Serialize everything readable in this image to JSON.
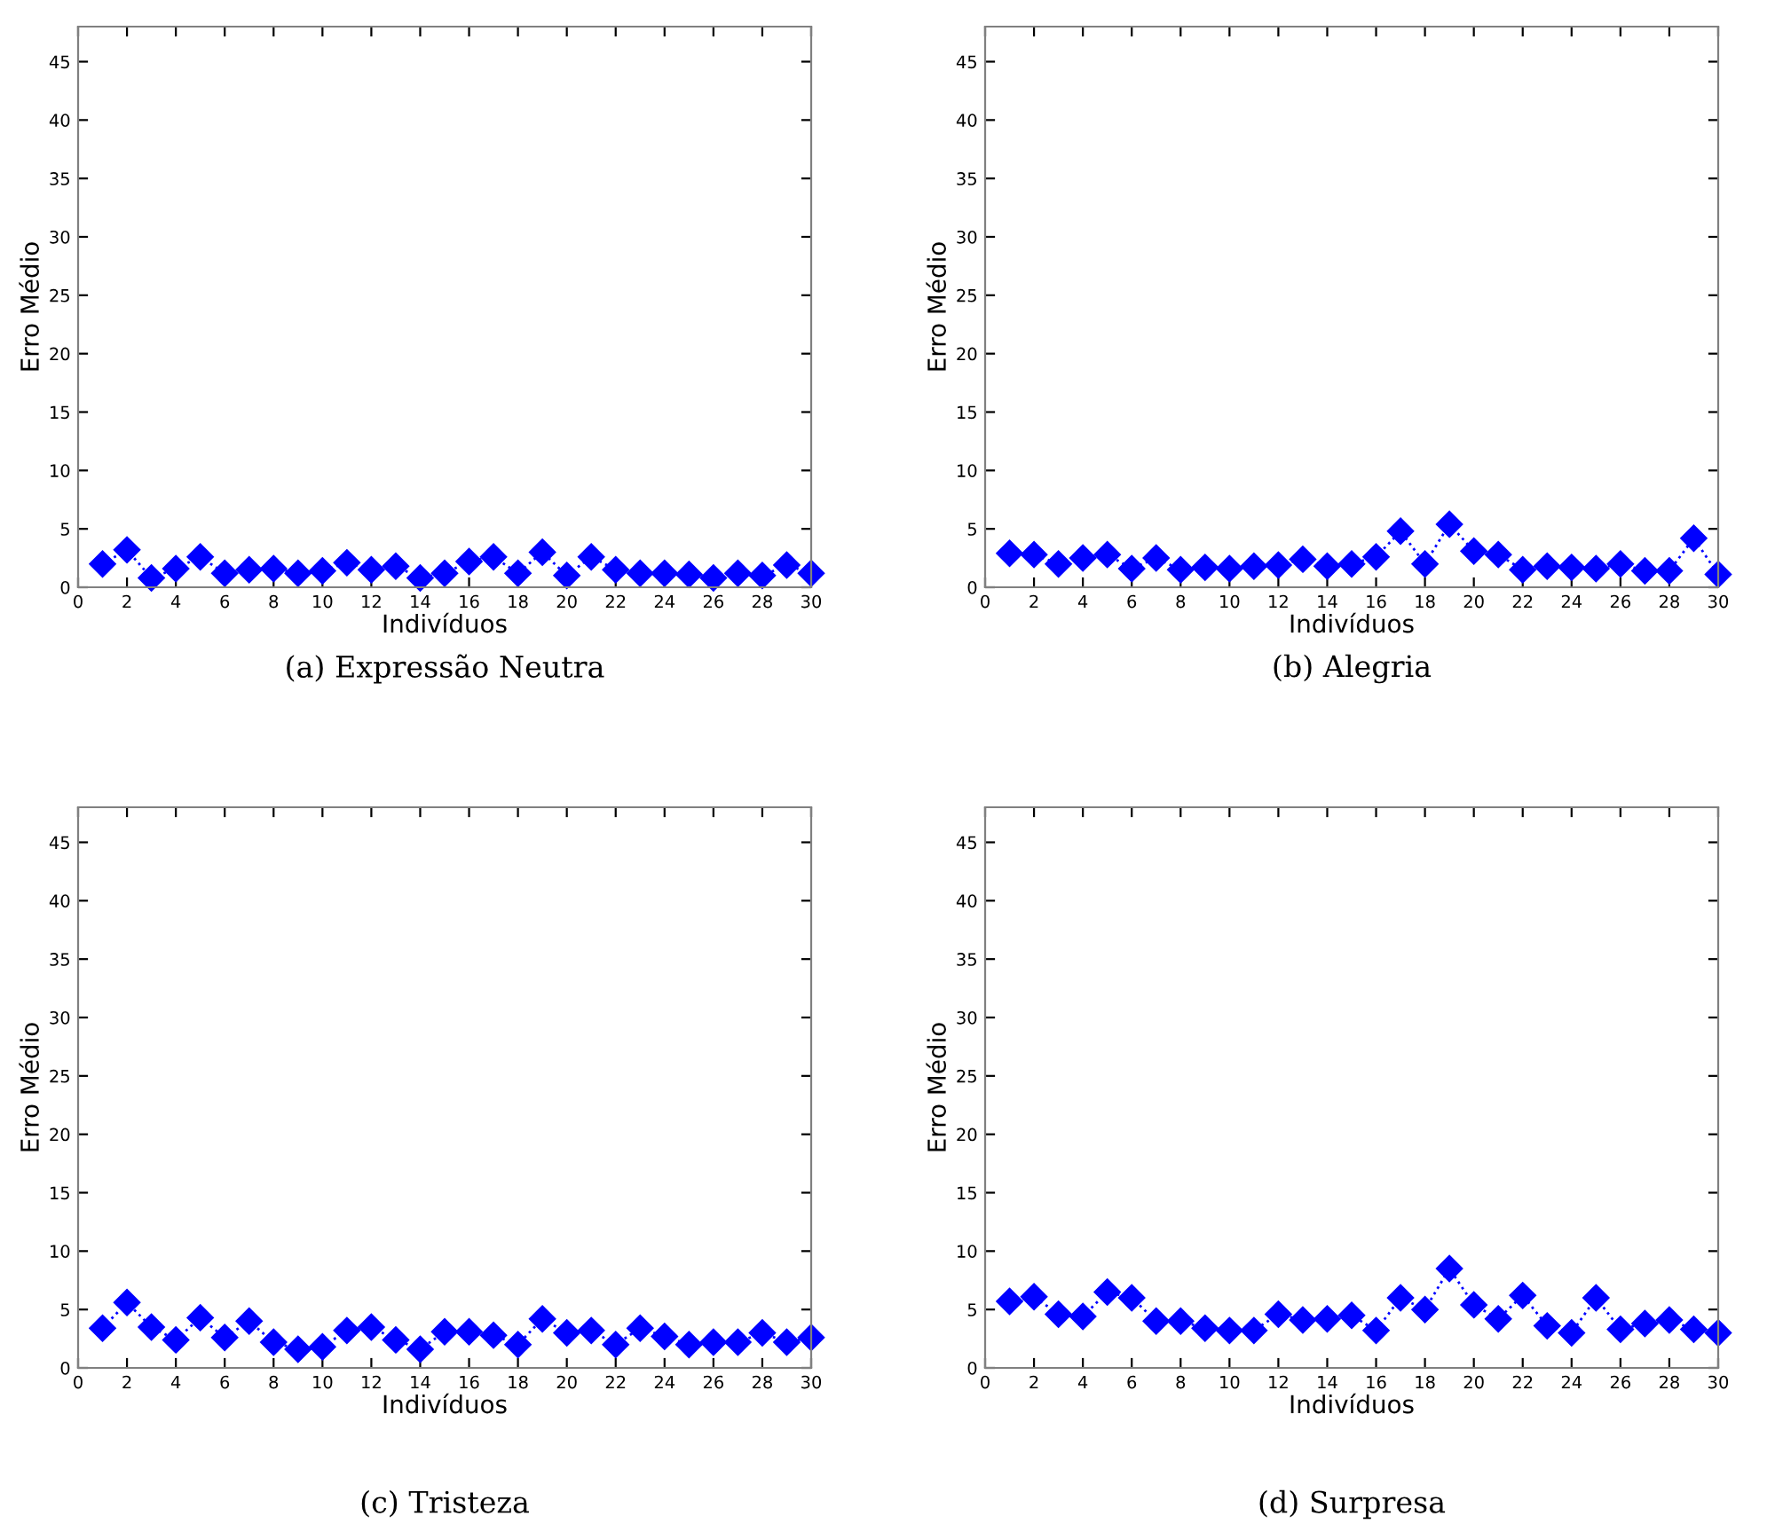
{
  "chart_data": [
    {
      "type": "line",
      "xlabel": "Indivíduos",
      "ylabel": "Erro Médio",
      "annotations": [
        "(a) Expressão Neutra"
      ],
      "marker": "diamond",
      "line_style": "dotted",
      "x": [
        1,
        2,
        3,
        4,
        5,
        6,
        7,
        8,
        9,
        10,
        11,
        12,
        13,
        14,
        15,
        16,
        17,
        18,
        19,
        20,
        21,
        22,
        23,
        24,
        25,
        26,
        27,
        28,
        29,
        30
      ],
      "xlim": [
        0,
        30
      ],
      "xticks": [
        0,
        2,
        4,
        6,
        8,
        10,
        12,
        14,
        16,
        18,
        20,
        22,
        24,
        26,
        28,
        30
      ],
      "ylim": [
        0,
        48
      ],
      "yticks": [
        0,
        5,
        10,
        15,
        20,
        25,
        30,
        35,
        40,
        45
      ],
      "series": [
        {
          "color": "#0000ff",
          "values": [
            2.0,
            3.2,
            0.8,
            1.6,
            2.6,
            1.2,
            1.5,
            1.6,
            1.2,
            1.4,
            2.1,
            1.5,
            1.8,
            0.8,
            1.2,
            2.2,
            2.6,
            1.2,
            3.0,
            1.0,
            2.6,
            1.5,
            1.2,
            1.2,
            1.1,
            0.8,
            1.2,
            1.0,
            1.9,
            1.2
          ]
        }
      ]
    },
    {
      "type": "line",
      "xlabel": "Indivíduos",
      "ylabel": "Erro Médio",
      "annotations": [
        "(b) Alegria"
      ],
      "marker": "diamond",
      "line_style": "dotted",
      "x": [
        1,
        2,
        3,
        4,
        5,
        6,
        7,
        8,
        9,
        10,
        11,
        12,
        13,
        14,
        15,
        16,
        17,
        18,
        19,
        20,
        21,
        22,
        23,
        24,
        25,
        26,
        27,
        28,
        29,
        30
      ],
      "xlim": [
        0,
        30
      ],
      "xticks": [
        0,
        2,
        4,
        6,
        8,
        10,
        12,
        14,
        16,
        18,
        20,
        22,
        24,
        26,
        28,
        30
      ],
      "ylim": [
        0,
        48
      ],
      "yticks": [
        0,
        5,
        10,
        15,
        20,
        25,
        30,
        35,
        40,
        45
      ],
      "series": [
        {
          "color": "#0000ff",
          "values": [
            2.9,
            2.8,
            2.0,
            2.5,
            2.8,
            1.6,
            2.5,
            1.5,
            1.7,
            1.6,
            1.8,
            1.9,
            2.4,
            1.8,
            2.0,
            2.6,
            4.8,
            2.0,
            5.4,
            3.1,
            2.8,
            1.5,
            1.8,
            1.7,
            1.6,
            2.0,
            1.4,
            1.4,
            4.2,
            1.1
          ]
        }
      ]
    },
    {
      "type": "line",
      "xlabel": "Indivíduos",
      "ylabel": "Erro Médio",
      "annotations": [
        "(c) Tristeza"
      ],
      "marker": "diamond",
      "line_style": "dotted",
      "x": [
        1,
        2,
        3,
        4,
        5,
        6,
        7,
        8,
        9,
        10,
        11,
        12,
        13,
        14,
        15,
        16,
        17,
        18,
        19,
        20,
        21,
        22,
        23,
        24,
        25,
        26,
        27,
        28,
        29,
        30
      ],
      "xlim": [
        0,
        30
      ],
      "xticks": [
        0,
        2,
        4,
        6,
        8,
        10,
        12,
        14,
        16,
        18,
        20,
        22,
        24,
        26,
        28,
        30
      ],
      "ylim": [
        0,
        48
      ],
      "yticks": [
        0,
        5,
        10,
        15,
        20,
        25,
        30,
        35,
        40,
        45
      ],
      "series": [
        {
          "color": "#0000ff",
          "values": [
            3.4,
            5.6,
            3.5,
            2.4,
            4.3,
            2.6,
            4.0,
            2.2,
            1.6,
            1.8,
            3.2,
            3.5,
            2.4,
            1.6,
            3.1,
            3.1,
            2.8,
            2.0,
            4.2,
            3.0,
            3.2,
            2.0,
            3.4,
            2.7,
            2.0,
            2.2,
            2.2,
            3.0,
            2.2,
            2.6
          ]
        }
      ]
    },
    {
      "type": "line",
      "xlabel": "Indivíduos",
      "ylabel": "Erro Médio",
      "annotations": [
        "(d) Surpresa"
      ],
      "marker": "diamond",
      "line_style": "dotted",
      "x": [
        1,
        2,
        3,
        4,
        5,
        6,
        7,
        8,
        9,
        10,
        11,
        12,
        13,
        14,
        15,
        16,
        17,
        18,
        19,
        20,
        21,
        22,
        23,
        24,
        25,
        26,
        27,
        28,
        29,
        30
      ],
      "xlim": [
        0,
        30
      ],
      "xticks": [
        0,
        2,
        4,
        6,
        8,
        10,
        12,
        14,
        16,
        18,
        20,
        22,
        24,
        26,
        28,
        30
      ],
      "ylim": [
        0,
        48
      ],
      "yticks": [
        0,
        5,
        10,
        15,
        20,
        25,
        30,
        35,
        40,
        45
      ],
      "series": [
        {
          "color": "#0000ff",
          "values": [
            5.7,
            6.1,
            4.6,
            4.4,
            6.5,
            6.0,
            4.0,
            4.0,
            3.4,
            3.2,
            3.2,
            4.6,
            4.1,
            4.2,
            4.5,
            3.2,
            6.0,
            5.0,
            8.5,
            5.4,
            4.2,
            6.2,
            3.6,
            3.0,
            6.0,
            3.3,
            3.8,
            4.1,
            3.3,
            3.0
          ]
        }
      ]
    }
  ]
}
